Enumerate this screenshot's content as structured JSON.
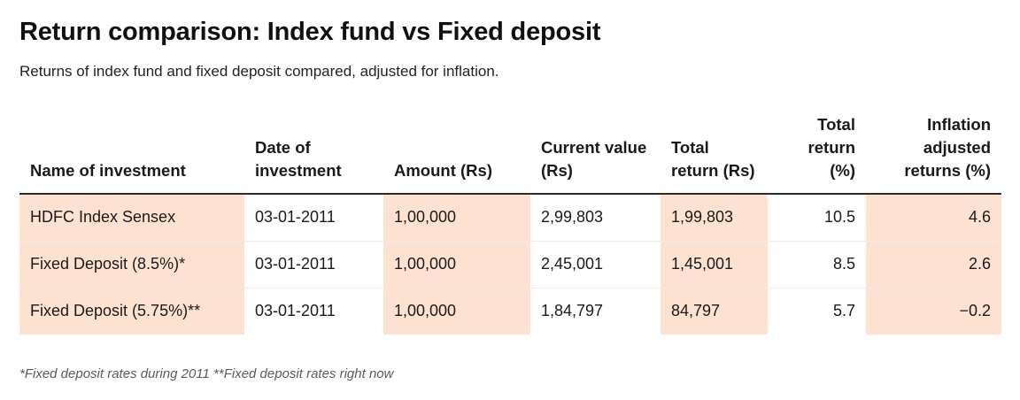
{
  "chart_data": {
    "type": "table",
    "title": "Return comparison: Index fund vs Fixed deposit",
    "subtitle": "Returns of index fund and fixed deposit compared, adjusted for inflation.",
    "columns": [
      "Name of investment",
      "Date of investment",
      "Amount (Rs)",
      "Current value (Rs)",
      "Total return (Rs)",
      "Total return (%)",
      "Inflation adjusted returns (%)"
    ],
    "rows": [
      [
        "HDFC Index Sensex",
        "03-01-2011",
        "1,00,000",
        "2,99,803",
        "1,99,803",
        "10.5",
        "4.6"
      ],
      [
        "Fixed Deposit (8.5%)*",
        "03-01-2011",
        "1,00,000",
        "2,45,001",
        "1,45,001",
        "8.5",
        "2.6"
      ],
      [
        "Fixed Deposit (5.75%)**",
        "03-01-2011",
        "1,00,000",
        "1,84,797",
        "84,797",
        "5.7",
        "−0.2"
      ]
    ],
    "highlight_color": "#fde2d2",
    "highlighted_columns": [
      "Name of investment",
      "Amount (Rs)",
      "Total return (Rs)",
      "Inflation adjusted returns (%)"
    ],
    "footnote": "*Fixed deposit rates during 2011 **Fixed deposit rates right now"
  }
}
